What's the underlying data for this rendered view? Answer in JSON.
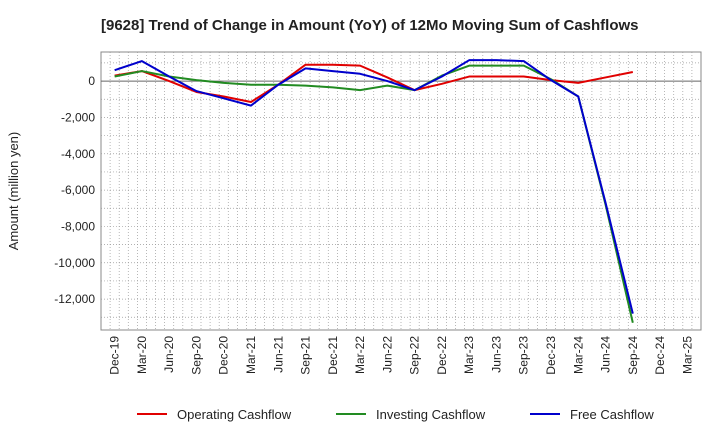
{
  "chart_data": {
    "type": "line",
    "title": "[9628]  Trend of Change in Amount (YoY) of 12Mo Moving Sum of Cashflows",
    "xlabel": "",
    "ylabel": "Amount (million yen)",
    "ylim": [
      -13700,
      1600
    ],
    "yticks": [
      0,
      -2000,
      -4000,
      -6000,
      -8000,
      -10000,
      -12000
    ],
    "ytick_labels": [
      "0",
      "-2,000",
      "-4,000",
      "-6,000",
      "-8,000",
      "-10,000",
      "-12,000"
    ],
    "categories": [
      "Dec-19",
      "Mar-20",
      "Jun-20",
      "Sep-20",
      "Dec-20",
      "Mar-21",
      "Jun-21",
      "Sep-21",
      "Dec-21",
      "Mar-22",
      "Jun-22",
      "Sep-22",
      "Dec-22",
      "Mar-23",
      "Jun-23",
      "Sep-23",
      "Dec-23",
      "Mar-24",
      "Jun-24",
      "Sep-24",
      "Dec-24",
      "Mar-25"
    ],
    "grid": true,
    "legend_position": "bottom",
    "series": [
      {
        "name": "Operating Cashflow",
        "color": "#e00000",
        "values": [
          300,
          550,
          0,
          -600,
          -850,
          -1150,
          -200,
          900,
          900,
          850,
          200,
          -500,
          -150,
          250,
          250,
          250,
          50,
          -100,
          200,
          500,
          null,
          null
        ]
      },
      {
        "name": "Investing Cashflow",
        "color": "#228b22",
        "values": [
          250,
          550,
          250,
          50,
          -100,
          -200,
          -200,
          -250,
          -350,
          -500,
          -250,
          -500,
          300,
          850,
          850,
          850,
          100,
          -850,
          -6800,
          -13300,
          null,
          null
        ]
      },
      {
        "name": "Free Cashflow",
        "color": "#0000cc",
        "values": [
          600,
          1100,
          250,
          -550,
          -950,
          -1350,
          -200,
          700,
          550,
          400,
          0,
          -500,
          250,
          1150,
          1150,
          1100,
          50,
          -850,
          -6700,
          -12800,
          null,
          null
        ]
      }
    ]
  }
}
